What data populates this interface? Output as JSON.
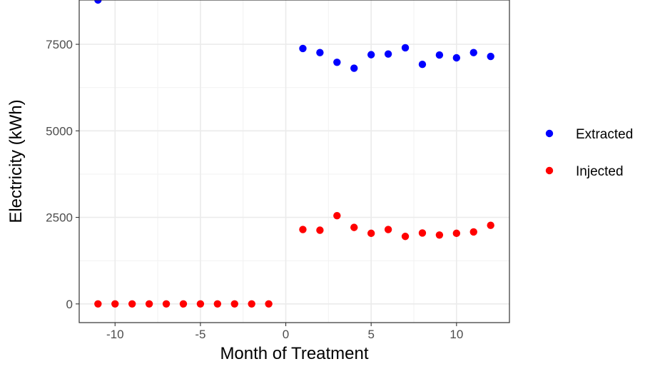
{
  "chart_data": {
    "type": "scatter",
    "title": "",
    "xlabel": "Month of Treatment",
    "ylabel": "Electricity (kWh)",
    "xlim": [
      -12.1,
      13.1
    ],
    "ylim": [
      -540,
      8780
    ],
    "x_ticks": [
      -10,
      -5,
      0,
      5,
      10
    ],
    "x_tick_labels": [
      "-10",
      "-5",
      "0",
      "5",
      "10"
    ],
    "y_ticks": [
      0,
      2500,
      5000,
      7500
    ],
    "y_tick_labels": [
      "0",
      "2500",
      "5000",
      "7500"
    ],
    "grid": true,
    "legend_position": "right",
    "series": [
      {
        "name": "Extracted",
        "color": "#0000ff",
        "points": [
          {
            "x": -11,
            "y": 8780
          },
          {
            "x": 1,
            "y": 7380
          },
          {
            "x": 2,
            "y": 7260
          },
          {
            "x": 3,
            "y": 6980
          },
          {
            "x": 4,
            "y": 6810
          },
          {
            "x": 5,
            "y": 7200
          },
          {
            "x": 6,
            "y": 7220
          },
          {
            "x": 7,
            "y": 7400
          },
          {
            "x": 8,
            "y": 6920
          },
          {
            "x": 9,
            "y": 7190
          },
          {
            "x": 10,
            "y": 7110
          },
          {
            "x": 11,
            "y": 7260
          },
          {
            "x": 12,
            "y": 7150
          }
        ]
      },
      {
        "name": "Injected",
        "color": "#ff0000",
        "points": [
          {
            "x": -11,
            "y": 0
          },
          {
            "x": -10,
            "y": 0
          },
          {
            "x": -9,
            "y": 0
          },
          {
            "x": -8,
            "y": 0
          },
          {
            "x": -7,
            "y": 0
          },
          {
            "x": -6,
            "y": 0
          },
          {
            "x": -5,
            "y": 0
          },
          {
            "x": -4,
            "y": 0
          },
          {
            "x": -3,
            "y": 0
          },
          {
            "x": -2,
            "y": 0
          },
          {
            "x": -1,
            "y": 0
          },
          {
            "x": 1,
            "y": 2150
          },
          {
            "x": 2,
            "y": 2130
          },
          {
            "x": 3,
            "y": 2550
          },
          {
            "x": 4,
            "y": 2210
          },
          {
            "x": 5,
            "y": 2040
          },
          {
            "x": 6,
            "y": 2150
          },
          {
            "x": 7,
            "y": 1950
          },
          {
            "x": 8,
            "y": 2050
          },
          {
            "x": 9,
            "y": 1990
          },
          {
            "x": 10,
            "y": 2040
          },
          {
            "x": 11,
            "y": 2080
          },
          {
            "x": 12,
            "y": 2270
          }
        ]
      }
    ]
  }
}
